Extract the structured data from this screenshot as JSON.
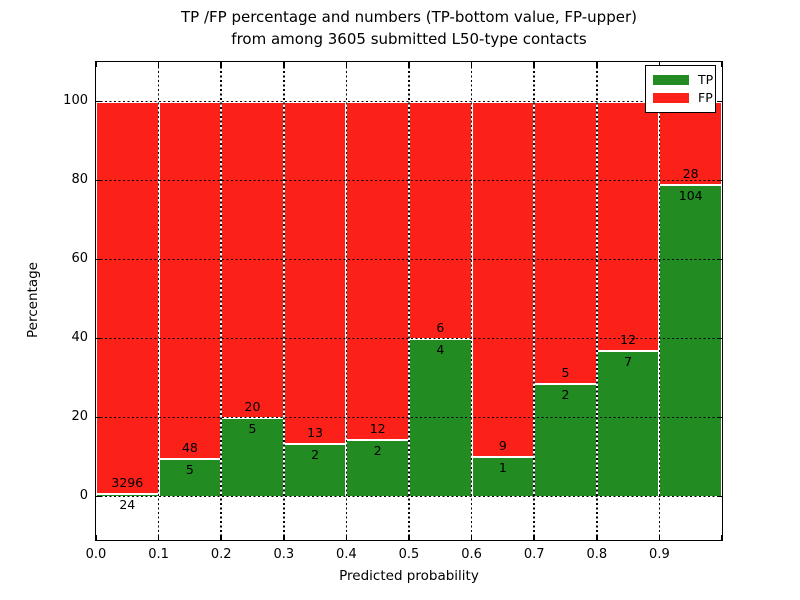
{
  "chart_data": {
    "type": "bar",
    "stacked": true,
    "normalized": "percent",
    "title_line1": "TP /FP percentage and numbers (TP-bottom value, FP-upper)",
    "title_line2": "from among 3605 submitted L50-type contacts",
    "xlabel": "Predicted probability",
    "ylabel": "Percentage",
    "bin_edges": [
      0.0,
      0.1,
      0.2,
      0.3,
      0.4,
      0.5,
      0.6,
      0.7,
      0.8,
      0.9,
      1.0
    ],
    "series": [
      {
        "name": "TP",
        "color": "#228B22",
        "counts": [
          24,
          5,
          5,
          2,
          2,
          4,
          1,
          2,
          7,
          104
        ]
      },
      {
        "name": "FP",
        "color": "#fb2118",
        "counts": [
          3296,
          48,
          20,
          13,
          12,
          6,
          9,
          5,
          12,
          28
        ]
      }
    ],
    "tp_percent": [
      0.72,
      9.43,
      20.0,
      13.33,
      14.29,
      40.0,
      10.0,
      28.57,
      36.84,
      78.79
    ],
    "xticks": [
      "0.0",
      "0.1",
      "0.2",
      "0.3",
      "0.4",
      "0.5",
      "0.6",
      "0.7",
      "0.8",
      "0.9"
    ],
    "yticks": [
      0,
      20,
      40,
      60,
      80,
      100
    ],
    "xlim": [
      0.0,
      1.0
    ],
    "ylim": [
      -11,
      110
    ],
    "grid": "dotted-black-above-bars",
    "bar_edge_color": "#ffffff",
    "legend": {
      "position": "upper-right",
      "entries": [
        {
          "label": "TP",
          "color": "#228B22"
        },
        {
          "label": "FP",
          "color": "#fb2118"
        }
      ]
    }
  }
}
